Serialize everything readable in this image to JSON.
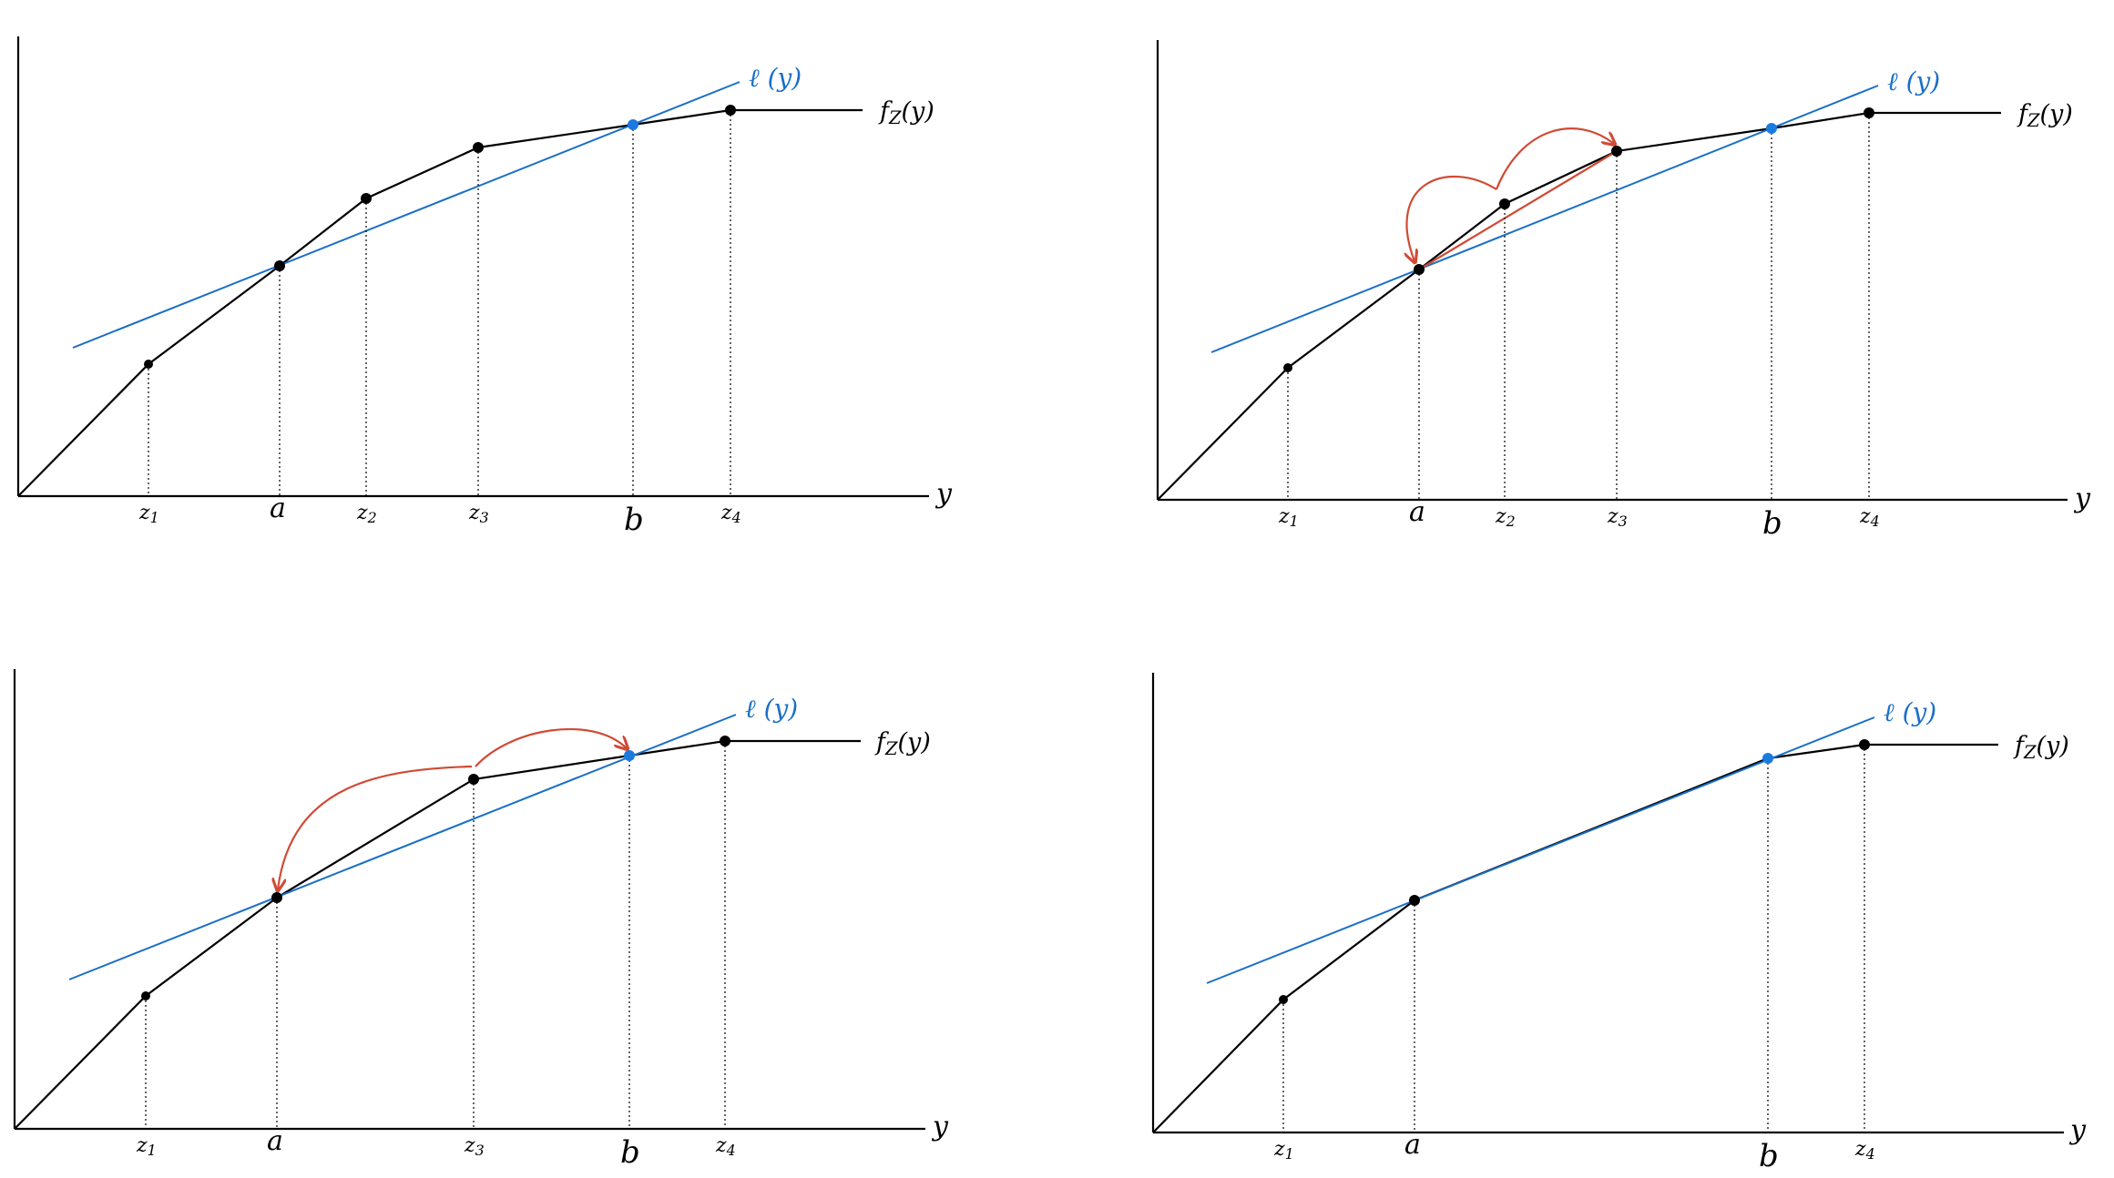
{
  "colors": {
    "curve": "#000000",
    "tangent": "#1a6fc9",
    "tangent_point": "#1a7ae0",
    "arrow": "#d04a35"
  },
  "labels": {
    "axis": "y",
    "curve": "f",
    "curve_sub": "Z",
    "curve_arg": "(y)",
    "tangent": "ℓ (y)",
    "a": "a",
    "b": "b",
    "z": "z",
    "z1_sub": "1",
    "z2_sub": "2",
    "z3_sub": "3",
    "z4_sub": "4"
  },
  "panels": [
    {
      "id": "top-left",
      "knots": [
        "z1",
        "a",
        "z2",
        "z3",
        "b",
        "z4"
      ],
      "arrows": "none"
    },
    {
      "id": "top-right",
      "knots": [
        "z1",
        "a",
        "z2",
        "z3",
        "b",
        "z4"
      ],
      "arrows": "z2-to-a-and-z3"
    },
    {
      "id": "bottom-left",
      "knots": [
        "z1",
        "a",
        "z3",
        "b",
        "z4"
      ],
      "arrows": "z3-to-a-and-b"
    },
    {
      "id": "bottom-right",
      "knots": [
        "z1",
        "a",
        "b",
        "z4"
      ],
      "arrows": "none"
    }
  ]
}
